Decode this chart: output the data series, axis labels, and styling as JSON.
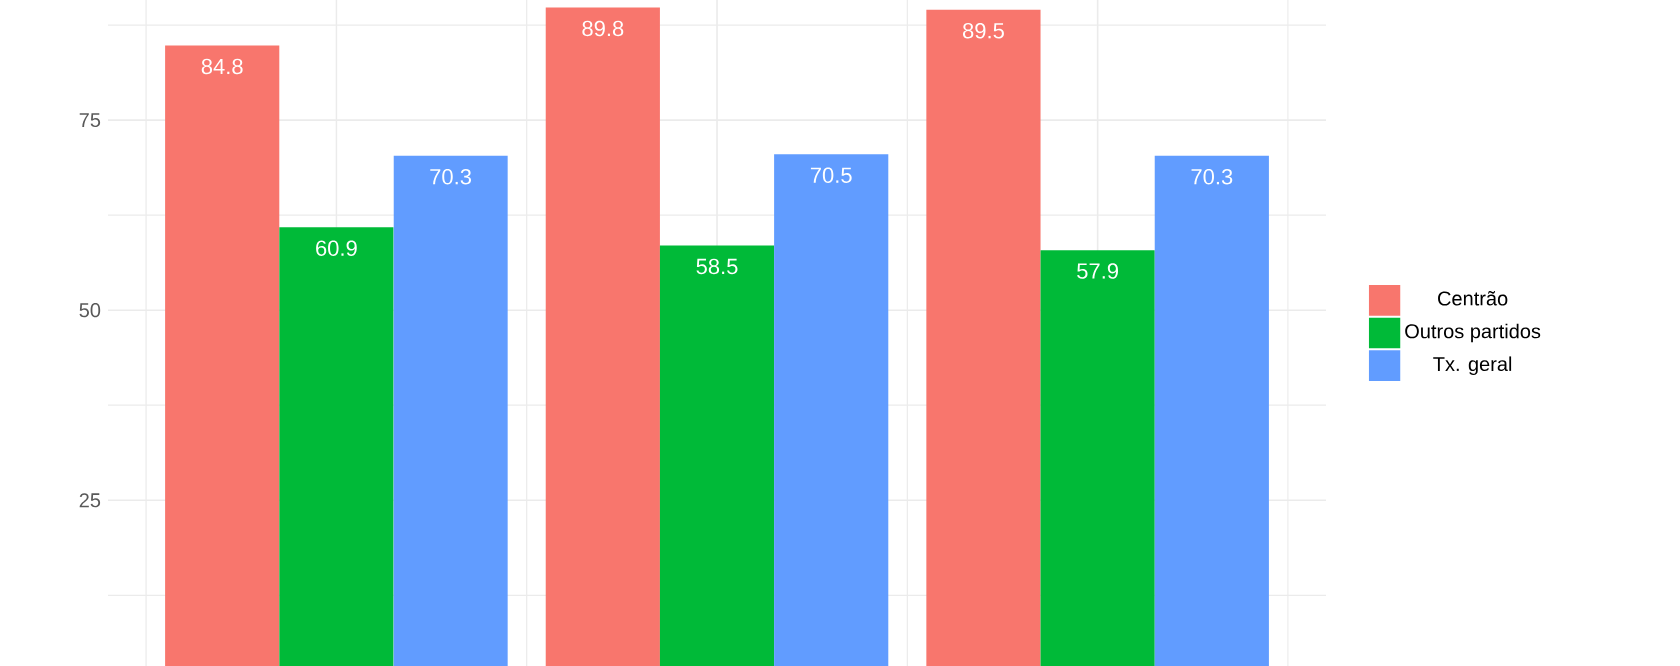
{
  "chart_data": {
    "type": "bar",
    "categories": [
      null,
      null,
      null
    ],
    "series": [
      {
        "name": "Centrão",
        "color": "#f8766d",
        "values": [
          84.8,
          89.8,
          89.5
        ]
      },
      {
        "name": "Outros partidos",
        "color": "#00ba38",
        "values": [
          60.9,
          58.5,
          57.9
        ]
      },
      {
        "name": "Tx. geral",
        "color": "#619cff",
        "values": [
          70.3,
          70.5,
          70.3
        ]
      }
    ],
    "ylim": [
      3.2,
      90.8
    ],
    "yticks": [
      25,
      50,
      75
    ],
    "grid": true,
    "legend": "right",
    "data_labels": true,
    "tick_labels": "y"
  }
}
